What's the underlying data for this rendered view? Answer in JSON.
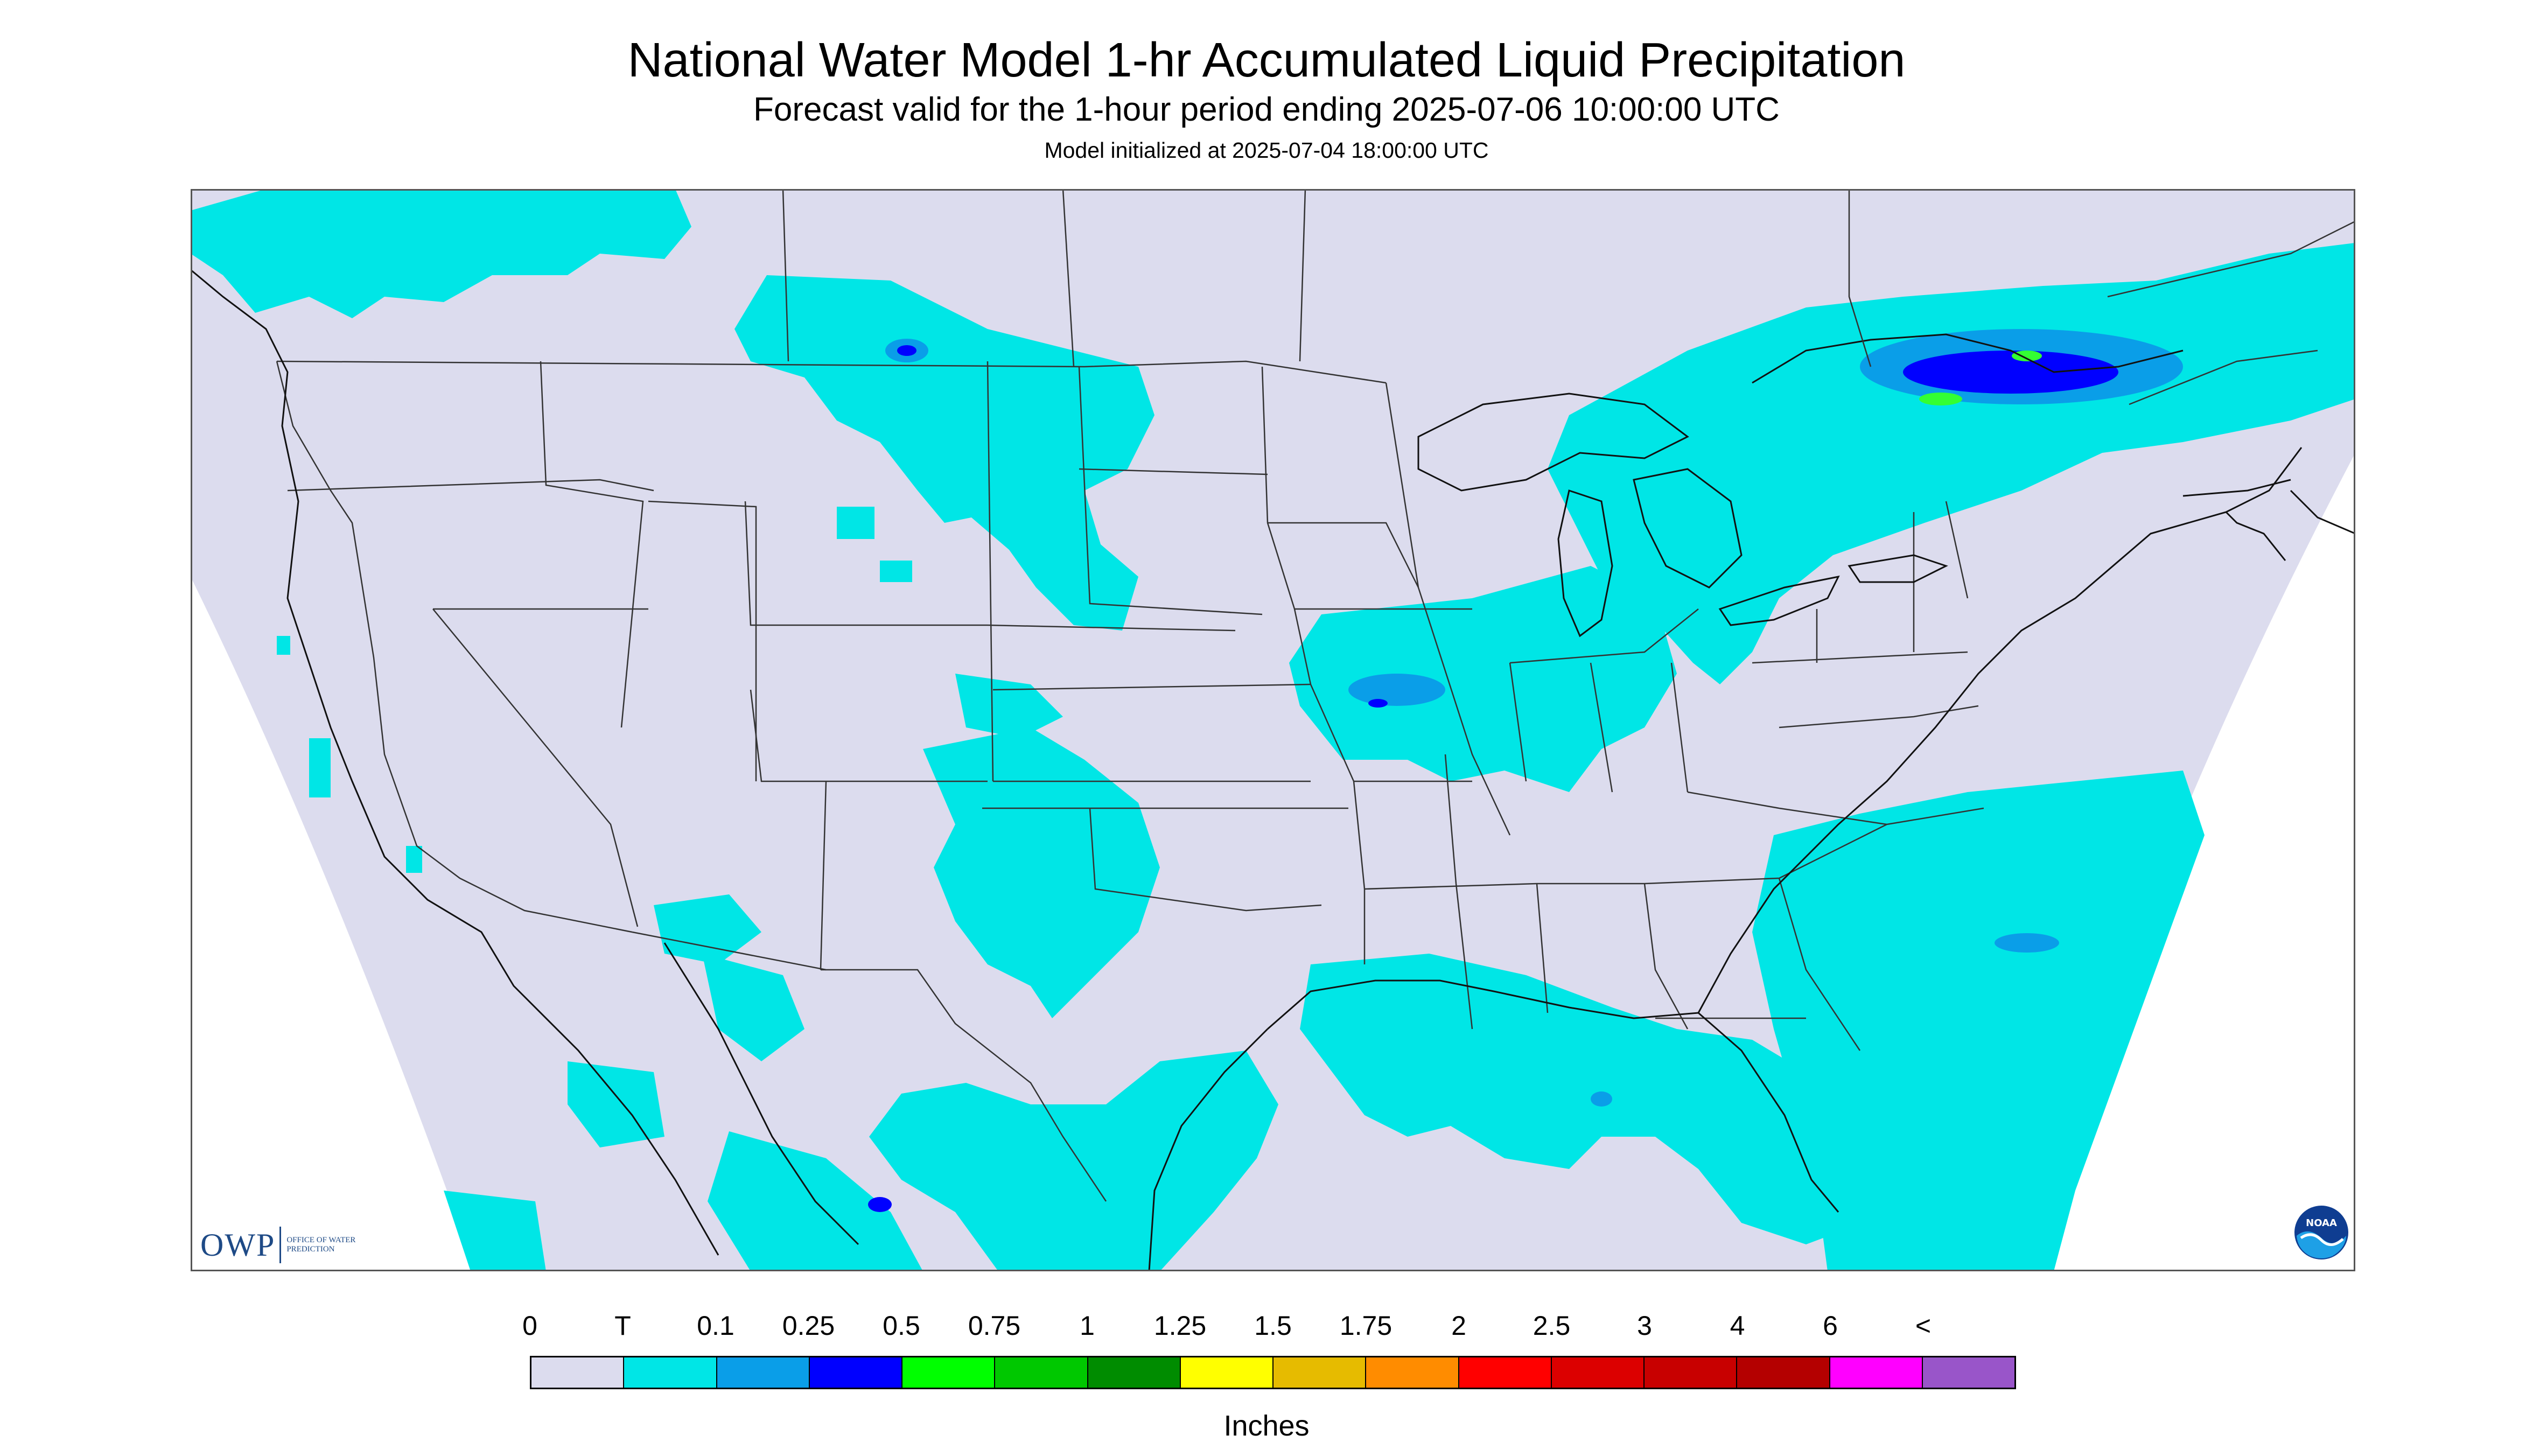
{
  "header": {
    "title": "National Water Model 1-hr Accumulated Liquid Precipitation",
    "subtitle": "Forecast valid for the 1-hour period ending 2025-07-06 10:00:00 UTC",
    "initialized": "Model initialized at 2025-07-04 18:00:00 UTC"
  },
  "map": {
    "region": "CONUS",
    "background_color": "#dcdcee",
    "colors": {
      "trace": "#00e6e6",
      "light": "#0a9ee8",
      "moderate": "#0000ff",
      "heavy": "#33ff33"
    }
  },
  "logos": {
    "owp_mark": "OWP",
    "owp_text": "OFFICE OF WATER PREDICTION",
    "noaa_text": "NOAA"
  },
  "legend": {
    "labels": [
      "0",
      "T",
      "0.1",
      "0.25",
      "0.5",
      "0.75",
      "1",
      "1.25",
      "1.5",
      "1.75",
      "2",
      "2.5",
      "3",
      "4",
      "6",
      "<"
    ],
    "colors": [
      "#dcdcee",
      "#00e6e6",
      "#0a9ee8",
      "#0000ff",
      "#00ff00",
      "#00c800",
      "#008c00",
      "#ffff00",
      "#e6bb00",
      "#ff8c00",
      "#ff0000",
      "#dc0000",
      "#c80000",
      "#b40000",
      "#ff00ff",
      "#9955c9"
    ],
    "units": "Inches"
  }
}
